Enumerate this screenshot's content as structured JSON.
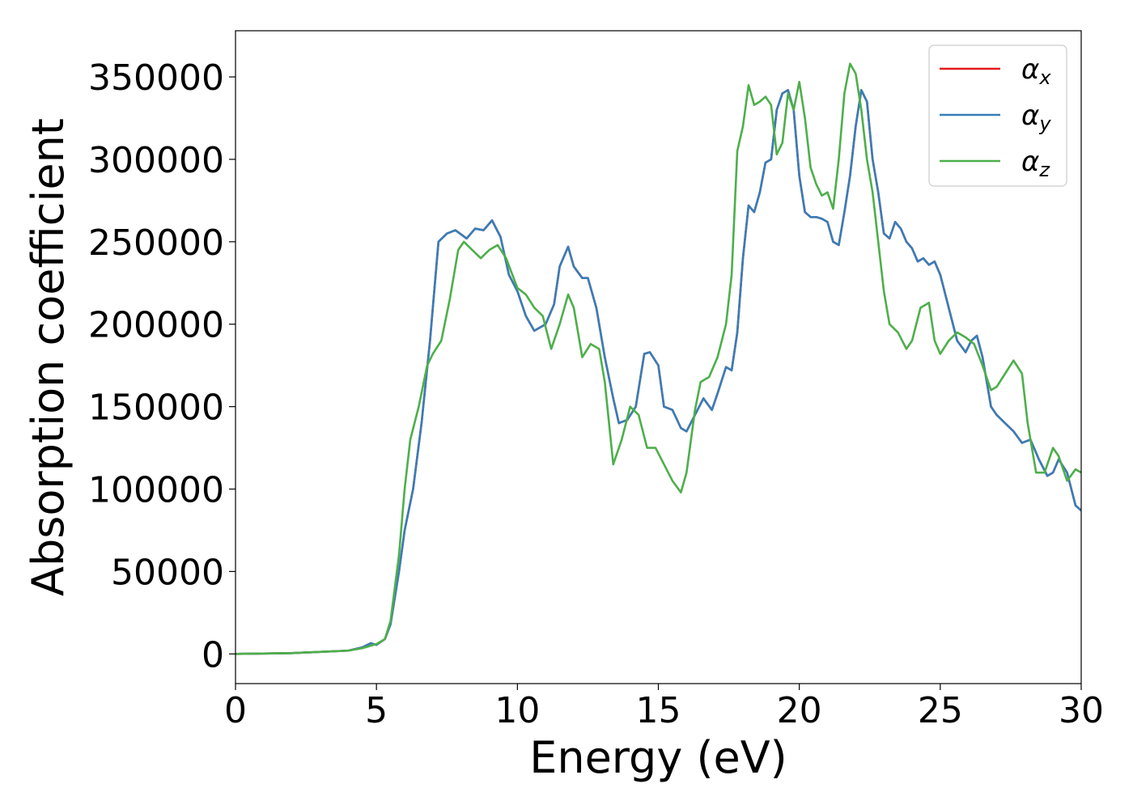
{
  "chart_data": {
    "type": "line",
    "xlabel": "Energy (eV)",
    "ylabel": "Absorption coefficient",
    "xlim": [
      0,
      30
    ],
    "ylim": [
      -18000,
      378000
    ],
    "xticks": [
      "0",
      "5",
      "10",
      "15",
      "20",
      "25",
      "30"
    ],
    "yticks": [
      "0",
      "50000",
      "100000",
      "150000",
      "200000",
      "250000",
      "300000",
      "350000"
    ],
    "grid": false,
    "legend_position": "top-right",
    "series": [
      {
        "name": "αx",
        "legend_base": "α",
        "legend_sub": "x",
        "color": "#e41a1c",
        "x": [
          0,
          2,
          4,
          4.5,
          4.8,
          5.0,
          5.3,
          5.5,
          5.8,
          6.0,
          6.3,
          6.6,
          6.9,
          7.2,
          7.5,
          7.8,
          8.2,
          8.5,
          8.8,
          9.1,
          9.4,
          9.7,
          10.0,
          10.3,
          10.6,
          11.0,
          11.3,
          11.5,
          11.8,
          12.0,
          12.3,
          12.5,
          12.8,
          13.1,
          13.4,
          13.6,
          13.9,
          14.2,
          14.5,
          14.7,
          15.0,
          15.2,
          15.5,
          15.8,
          16.0,
          16.3,
          16.6,
          16.9,
          17.1,
          17.4,
          17.6,
          17.8,
          18.0,
          18.2,
          18.4,
          18.6,
          18.8,
          19.0,
          19.2,
          19.4,
          19.6,
          19.8,
          20.0,
          20.2,
          20.4,
          20.6,
          20.8,
          21.0,
          21.2,
          21.4,
          21.6,
          21.8,
          22.0,
          22.2,
          22.4,
          22.6,
          22.8,
          23.0,
          23.2,
          23.4,
          23.6,
          23.8,
          24.0,
          24.2,
          24.4,
          24.6,
          24.8,
          25.0,
          25.3,
          25.6,
          25.9,
          26.1,
          26.3,
          26.5,
          26.8,
          27.0,
          27.3,
          27.6,
          27.9,
          28.2,
          28.5,
          28.8,
          29.0,
          29.2,
          29.5,
          29.8,
          30.0
        ],
        "y": [
          0,
          500,
          2000,
          4000,
          6500,
          5500,
          9000,
          18000,
          50000,
          75000,
          100000,
          140000,
          190000,
          250000,
          255000,
          257000,
          252000,
          258000,
          257000,
          263000,
          253000,
          230000,
          220000,
          205000,
          196000,
          200000,
          212000,
          235000,
          247000,
          235000,
          228000,
          228000,
          210000,
          180000,
          155000,
          140000,
          142000,
          150000,
          182000,
          183000,
          175000,
          150000,
          148000,
          137000,
          135000,
          145000,
          155000,
          148000,
          158000,
          174000,
          172000,
          195000,
          240000,
          272000,
          268000,
          280000,
          298000,
          300000,
          330000,
          340000,
          342000,
          330000,
          290000,
          268000,
          265000,
          265000,
          264000,
          262000,
          250000,
          248000,
          268000,
          290000,
          320000,
          342000,
          335000,
          300000,
          280000,
          255000,
          252000,
          262000,
          258000,
          250000,
          246000,
          238000,
          240000,
          236000,
          238000,
          230000,
          210000,
          190000,
          183000,
          190000,
          193000,
          180000,
          150000,
          145000,
          140000,
          135000,
          128000,
          130000,
          118000,
          108000,
          110000,
          118000,
          110000,
          90000,
          87000
        ]
      },
      {
        "name": "αy",
        "legend_base": "α",
        "legend_sub": "y",
        "color": "#377eb8",
        "x": [
          0,
          2,
          4,
          4.5,
          4.8,
          5.0,
          5.3,
          5.5,
          5.8,
          6.0,
          6.3,
          6.6,
          6.9,
          7.2,
          7.5,
          7.8,
          8.2,
          8.5,
          8.8,
          9.1,
          9.4,
          9.7,
          10.0,
          10.3,
          10.6,
          11.0,
          11.3,
          11.5,
          11.8,
          12.0,
          12.3,
          12.5,
          12.8,
          13.1,
          13.4,
          13.6,
          13.9,
          14.2,
          14.5,
          14.7,
          15.0,
          15.2,
          15.5,
          15.8,
          16.0,
          16.3,
          16.6,
          16.9,
          17.1,
          17.4,
          17.6,
          17.8,
          18.0,
          18.2,
          18.4,
          18.6,
          18.8,
          19.0,
          19.2,
          19.4,
          19.6,
          19.8,
          20.0,
          20.2,
          20.4,
          20.6,
          20.8,
          21.0,
          21.2,
          21.4,
          21.6,
          21.8,
          22.0,
          22.2,
          22.4,
          22.6,
          22.8,
          23.0,
          23.2,
          23.4,
          23.6,
          23.8,
          24.0,
          24.2,
          24.4,
          24.6,
          24.8,
          25.0,
          25.3,
          25.6,
          25.9,
          26.1,
          26.3,
          26.5,
          26.8,
          27.0,
          27.3,
          27.6,
          27.9,
          28.2,
          28.5,
          28.8,
          29.0,
          29.2,
          29.5,
          29.8,
          30.0
        ],
        "y": [
          0,
          500,
          2000,
          4000,
          6500,
          5500,
          9000,
          18000,
          50000,
          75000,
          100000,
          140000,
          190000,
          250000,
          255000,
          257000,
          252000,
          258000,
          257000,
          263000,
          253000,
          230000,
          220000,
          205000,
          196000,
          200000,
          212000,
          235000,
          247000,
          235000,
          228000,
          228000,
          210000,
          180000,
          155000,
          140000,
          142000,
          150000,
          182000,
          183000,
          175000,
          150000,
          148000,
          137000,
          135000,
          145000,
          155000,
          148000,
          158000,
          174000,
          172000,
          195000,
          240000,
          272000,
          268000,
          280000,
          298000,
          300000,
          330000,
          340000,
          342000,
          330000,
          290000,
          268000,
          265000,
          265000,
          264000,
          262000,
          250000,
          248000,
          268000,
          290000,
          320000,
          342000,
          335000,
          300000,
          280000,
          255000,
          252000,
          262000,
          258000,
          250000,
          246000,
          238000,
          240000,
          236000,
          238000,
          230000,
          210000,
          190000,
          183000,
          190000,
          193000,
          180000,
          150000,
          145000,
          140000,
          135000,
          128000,
          130000,
          118000,
          108000,
          110000,
          118000,
          110000,
          90000,
          87000
        ]
      },
      {
        "name": "αz",
        "legend_base": "α",
        "legend_sub": "z",
        "color": "#4daf4a",
        "x": [
          0,
          2,
          4,
          4.5,
          4.8,
          5.0,
          5.3,
          5.5,
          5.8,
          6.0,
          6.2,
          6.5,
          6.8,
          7.0,
          7.3,
          7.6,
          7.9,
          8.1,
          8.4,
          8.7,
          9.0,
          9.3,
          9.6,
          10.0,
          10.3,
          10.6,
          10.9,
          11.2,
          11.5,
          11.8,
          12.0,
          12.3,
          12.6,
          12.9,
          13.1,
          13.4,
          13.7,
          14.0,
          14.3,
          14.6,
          14.9,
          15.2,
          15.5,
          15.8,
          16.0,
          16.3,
          16.5,
          16.8,
          17.1,
          17.4,
          17.6,
          17.8,
          18.0,
          18.2,
          18.4,
          18.6,
          18.8,
          19.0,
          19.2,
          19.4,
          19.6,
          19.8,
          20.0,
          20.2,
          20.4,
          20.6,
          20.8,
          21.0,
          21.2,
          21.4,
          21.6,
          21.8,
          22.0,
          22.2,
          22.4,
          22.6,
          22.8,
          23.0,
          23.2,
          23.5,
          23.8,
          24.0,
          24.3,
          24.6,
          24.8,
          25.0,
          25.3,
          25.6,
          25.9,
          26.2,
          26.5,
          26.8,
          27.0,
          27.3,
          27.6,
          27.9,
          28.1,
          28.4,
          28.7,
          29.0,
          29.2,
          29.5,
          29.8,
          30.0
        ],
        "y": [
          0,
          500,
          2000,
          3500,
          5000,
          6000,
          9000,
          20000,
          60000,
          100000,
          130000,
          150000,
          175000,
          182000,
          190000,
          215000,
          245000,
          250000,
          245000,
          240000,
          245000,
          248000,
          240000,
          222000,
          218000,
          210000,
          205000,
          185000,
          200000,
          218000,
          210000,
          180000,
          188000,
          185000,
          165000,
          115000,
          130000,
          150000,
          145000,
          125000,
          125000,
          115000,
          105000,
          98000,
          110000,
          148000,
          165000,
          168000,
          180000,
          200000,
          230000,
          305000,
          320000,
          345000,
          333000,
          335000,
          338000,
          333000,
          303000,
          310000,
          340000,
          330000,
          347000,
          325000,
          295000,
          285000,
          278000,
          280000,
          270000,
          300000,
          340000,
          358000,
          352000,
          330000,
          300000,
          280000,
          250000,
          220000,
          200000,
          195000,
          185000,
          190000,
          210000,
          213000,
          190000,
          182000,
          190000,
          195000,
          192000,
          188000,
          175000,
          160000,
          162000,
          170000,
          178000,
          170000,
          140000,
          110000,
          110000,
          125000,
          120000,
          105000,
          112000,
          110000
        ]
      }
    ]
  }
}
